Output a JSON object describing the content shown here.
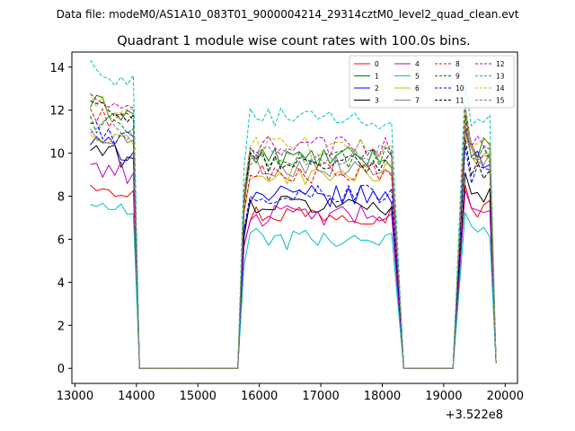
{
  "chart_data": {
    "type": "line",
    "suptitle": "Data file: modeM0/AS1A10_083T01_9000004214_29314cztM0_level2_quad_clean.evt",
    "title": "Quadrant 1 module wise count rates with 100.0s bins.",
    "xlabel": "",
    "ylabel": "",
    "x_offset_label": "+3.522e8",
    "xlim": [
      12950,
      20200
    ],
    "ylim": [
      -0.7,
      14.7
    ],
    "xticks": [
      13000,
      14000,
      15000,
      16000,
      17000,
      18000,
      19000,
      20000
    ],
    "yticks": [
      0,
      2,
      4,
      6,
      8,
      10,
      12,
      14
    ],
    "legend": {
      "placement": "top-right",
      "columns": 4
    },
    "grid": false,
    "segments": [
      {
        "x_start": 13250,
        "x_end": 13950,
        "step": 100
      },
      {
        "x_start": 15750,
        "x_end": 18150,
        "step": 100
      },
      {
        "x_start": 19350,
        "x_end": 19750,
        "step": 100
      }
    ],
    "gaps": [
      {
        "x_start": 14050,
        "x_end": 15650,
        "value": 0
      },
      {
        "x_start": 18350,
        "x_end": 19150,
        "value": 0
      }
    ],
    "series": [
      {
        "name": "0",
        "color": "#ff0000",
        "style": "solid",
        "levels": [
          8.25,
          7.2,
          7.4
        ]
      },
      {
        "name": "1",
        "color": "#008000",
        "style": "solid",
        "levels": [
          11.8,
          9.8,
          10.3
        ]
      },
      {
        "name": "2",
        "color": "#0000ff",
        "style": "solid",
        "levels": [
          10.0,
          8.0,
          9.7
        ]
      },
      {
        "name": "3",
        "color": "#000000",
        "style": "solid",
        "levels": [
          9.7,
          7.6,
          7.9
        ]
      },
      {
        "name": "4",
        "color": "#bf00bf",
        "style": "solid",
        "levels": [
          9.0,
          7.1,
          7.2
        ]
      },
      {
        "name": "5",
        "color": "#00bfbf",
        "style": "solid",
        "levels": [
          7.1,
          6.0,
          6.3
        ]
      },
      {
        "name": "6",
        "color": "#bfbf00",
        "style": "solid",
        "levels": [
          10.3,
          9.0,
          9.5
        ]
      },
      {
        "name": "7",
        "color": "#808080",
        "style": "solid",
        "levels": [
          10.5,
          9.4,
          9.8
        ]
      },
      {
        "name": "8",
        "color": "#ff0000",
        "style": "dashed",
        "levels": [
          11.4,
          9.1,
          10.0
        ]
      },
      {
        "name": "9",
        "color": "#008000",
        "style": "dashed",
        "levels": [
          11.0,
          9.8,
          10.2
        ]
      },
      {
        "name": "10",
        "color": "#0000ff",
        "style": "dashed",
        "levels": [
          10.6,
          8.1,
          9.0
        ]
      },
      {
        "name": "11",
        "color": "#000000",
        "style": "dashed",
        "levels": [
          11.6,
          9.6,
          9.3
        ]
      },
      {
        "name": "12",
        "color": "#bf00bf",
        "style": "dashed",
        "levels": [
          11.9,
          10.3,
          10.6
        ]
      },
      {
        "name": "13",
        "color": "#00bfbf",
        "style": "dashed",
        "levels": [
          13.4,
          11.6,
          11.5
        ]
      },
      {
        "name": "14",
        "color": "#bfbf00",
        "style": "dashed",
        "levels": [
          11.8,
          10.3,
          10.5
        ]
      },
      {
        "name": "15",
        "color": "#808080",
        "style": "dashed",
        "levels": [
          10.9,
          9.9,
          9.9
        ]
      }
    ]
  }
}
